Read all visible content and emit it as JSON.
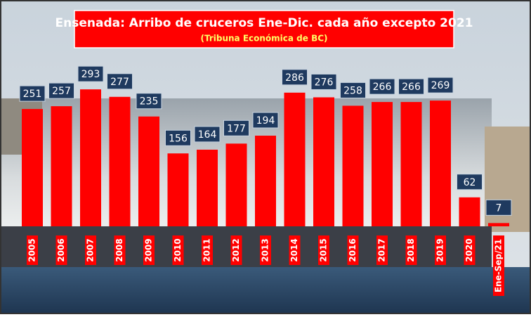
{
  "chart_data": {
    "type": "bar",
    "title": "Ensenada: Arribo de cruceros Ene-Dic. cada año excepto 2021",
    "subtitle": "(Tribuna Económica de BC)",
    "categories": [
      "2005",
      "2006",
      "2007",
      "2008",
      "2009",
      "2010",
      "2011",
      "2012",
      "2013",
      "2014",
      "2015",
      "2016",
      "2017",
      "2018",
      "2019",
      "2020",
      "Ene-Sep/21"
    ],
    "values": [
      251,
      257,
      293,
      277,
      235,
      156,
      164,
      177,
      194,
      286,
      276,
      258,
      266,
      266,
      269,
      62,
      7
    ],
    "color": "#ff0000"
  }
}
